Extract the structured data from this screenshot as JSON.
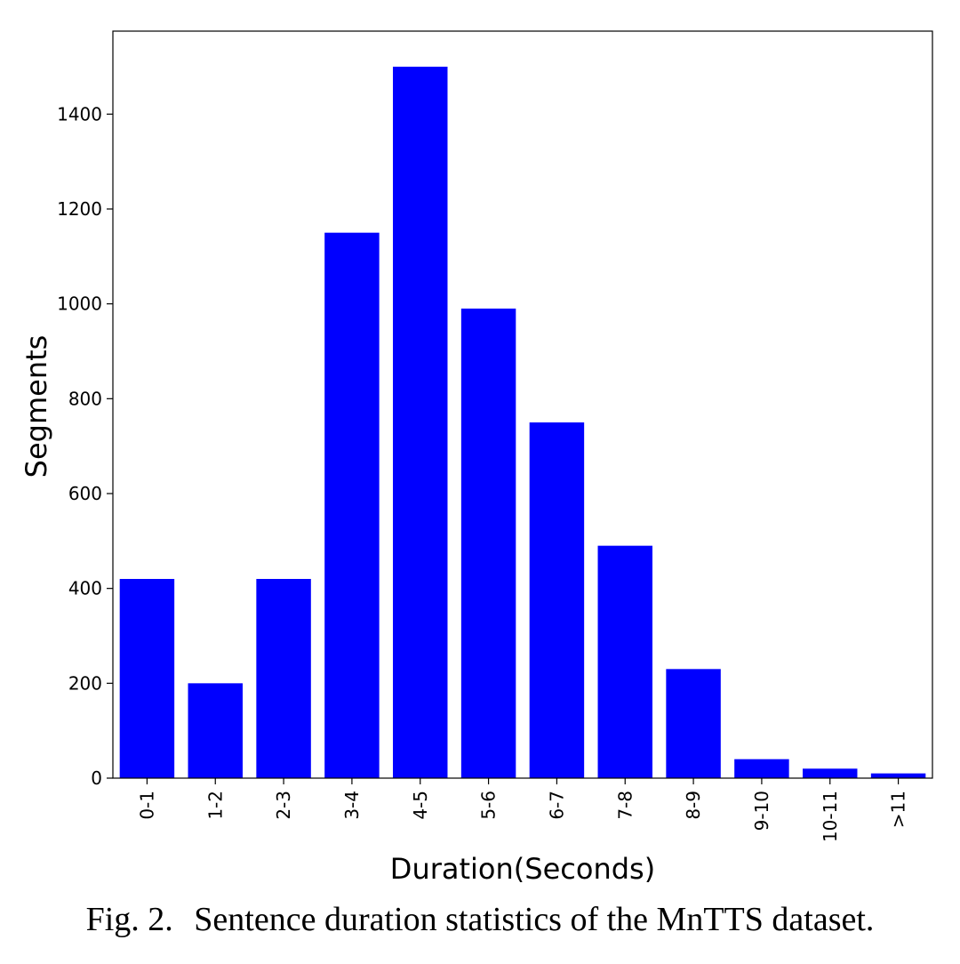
{
  "chart_data": {
    "type": "bar",
    "categories": [
      "0-1",
      "1-2",
      "2-3",
      "3-4",
      "4-5",
      "5-6",
      "6-7",
      "7-8",
      "8-9",
      "9-10",
      "10-11",
      ">11"
    ],
    "values": [
      420,
      200,
      420,
      1150,
      1500,
      990,
      750,
      490,
      230,
      40,
      20,
      10
    ],
    "xlabel": "Duration(Seconds)",
    "ylabel": "Segments",
    "ylim": [
      0,
      1575
    ],
    "yticks": [
      0,
      200,
      400,
      600,
      800,
      1000,
      1200,
      1400
    ],
    "bar_color": "#0000ff",
    "grid": false
  },
  "caption": {
    "number": "Fig. 2.",
    "text": "Sentence duration statistics of the MnTTS dataset."
  }
}
